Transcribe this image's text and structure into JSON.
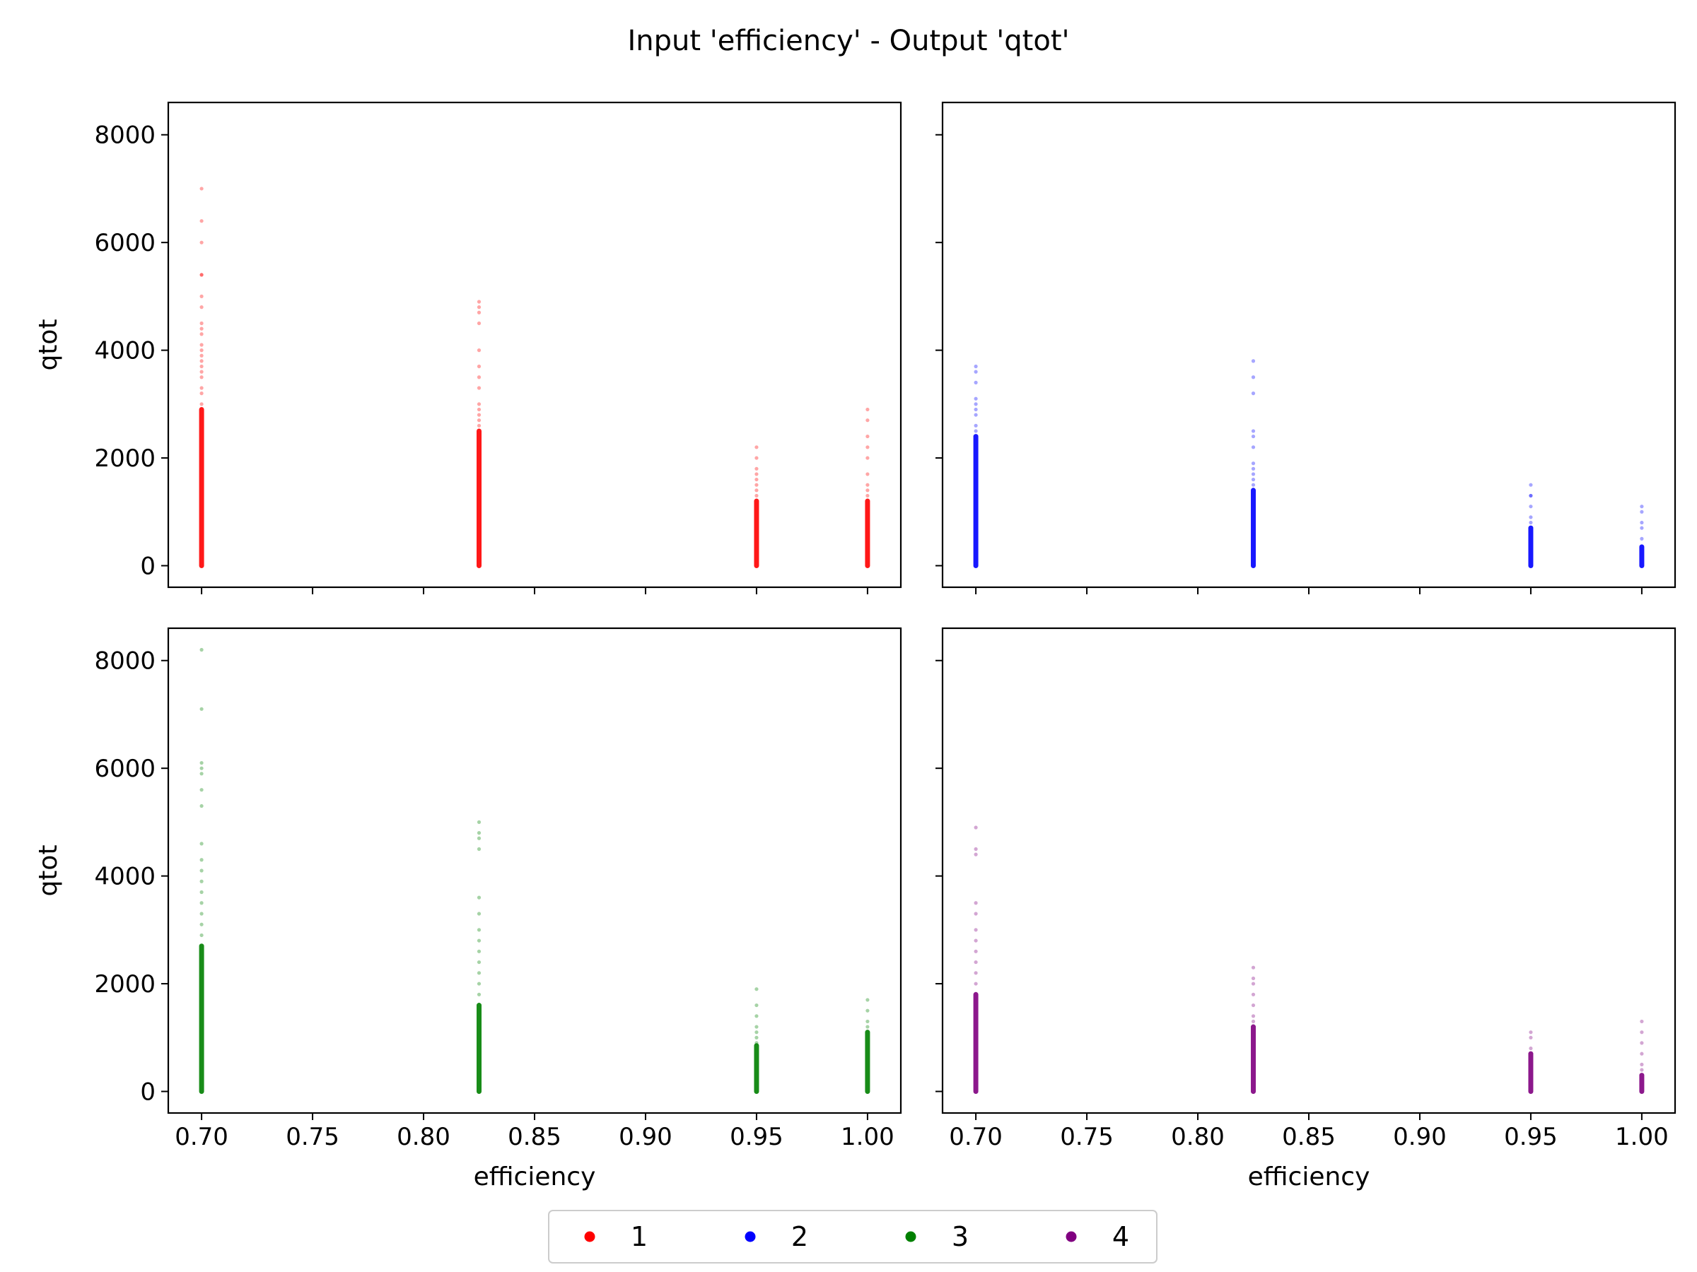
{
  "chart_data": {
    "type": "scatter",
    "title": "Input 'efficiency' - Output 'qtot'",
    "grid": false,
    "legend": {
      "placement": "bottom-center",
      "entries": [
        {
          "label": "1",
          "color": "#ff0000"
        },
        {
          "label": "2",
          "color": "#0000ff"
        },
        {
          "label": "3",
          "color": "#008000"
        },
        {
          "label": "4",
          "color": "#800080"
        }
      ]
    },
    "shared": {
      "xlim": [
        0.685,
        1.015
      ],
      "ylim": [
        -400,
        8600
      ],
      "xticks": [
        0.7,
        0.75,
        0.8,
        0.85,
        0.9,
        0.95,
        1.0
      ],
      "xtick_labels": [
        "0.70",
        "0.75",
        "0.80",
        "0.85",
        "0.90",
        "0.95",
        "1.00"
      ],
      "yticks": [
        0,
        2000,
        4000,
        6000,
        8000
      ],
      "ytick_labels": [
        "0",
        "2000",
        "4000",
        "6000",
        "8000"
      ]
    },
    "panels": [
      {
        "series": "1",
        "color": "#ff0000",
        "xlabel": "",
        "ylabel": "qtot",
        "show_xtick_labels": false,
        "show_ytick_labels": true,
        "groups": [
          {
            "x": 0.7,
            "dense_max": 2900,
            "outliers": [
              3000,
              3200,
              3300,
              3500,
              3600,
              3700,
              3800,
              3900,
              4000,
              4100,
              4300,
              4400,
              4500,
              4800,
              5000,
              5400,
              5400,
              6000,
              6400,
              7000
            ]
          },
          {
            "x": 0.825,
            "dense_max": 2500,
            "outliers": [
              2600,
              2700,
              2800,
              2900,
              3000,
              3300,
              3500,
              3700,
              4000,
              4500,
              4700,
              4800,
              4900
            ]
          },
          {
            "x": 0.95,
            "dense_max": 1200,
            "outliers": [
              1300,
              1400,
              1500,
              1600,
              1700,
              1800,
              2000,
              2200
            ]
          },
          {
            "x": 1.0,
            "dense_max": 1200,
            "outliers": [
              1300,
              1400,
              1500,
              1700,
              2000,
              2200,
              2400,
              2700,
              2900
            ]
          }
        ]
      },
      {
        "series": "2",
        "color": "#0000ff",
        "xlabel": "",
        "ylabel": "",
        "show_xtick_labels": false,
        "show_ytick_labels": false,
        "groups": [
          {
            "x": 0.7,
            "dense_max": 2400,
            "outliers": [
              2500,
              2600,
              2800,
              2900,
              3000,
              3100,
              3400,
              3600,
              3700
            ]
          },
          {
            "x": 0.825,
            "dense_max": 1400,
            "outliers": [
              1500,
              1600,
              1700,
              1800,
              1900,
              2200,
              2400,
              2500,
              3200,
              3500,
              3800
            ]
          },
          {
            "x": 0.95,
            "dense_max": 700,
            "outliers": [
              800,
              900,
              1100,
              1300,
              1300,
              1500
            ]
          },
          {
            "x": 1.0,
            "dense_max": 350,
            "outliers": [
              500,
              700,
              800,
              1000,
              1100
            ]
          }
        ]
      },
      {
        "series": "3",
        "color": "#008000",
        "xlabel": "efficiency",
        "ylabel": "qtot",
        "show_xtick_labels": true,
        "show_ytick_labels": true,
        "groups": [
          {
            "x": 0.7,
            "dense_max": 2700,
            "outliers": [
              2900,
              3100,
              3300,
              3500,
              3700,
              3900,
              4100,
              4300,
              4600,
              5300,
              5600,
              5900,
              6000,
              6100,
              7100,
              8200
            ]
          },
          {
            "x": 0.825,
            "dense_max": 1600,
            "outliers": [
              1800,
              2000,
              2200,
              2400,
              2600,
              2800,
              3000,
              3300,
              3600,
              4500,
              4700,
              4800,
              5000
            ]
          },
          {
            "x": 0.95,
            "dense_max": 850,
            "outliers": [
              900,
              1000,
              1100,
              1200,
              1400,
              1600,
              1900
            ]
          },
          {
            "x": 1.0,
            "dense_max": 1100,
            "outliers": [
              1200,
              1300,
              1500,
              1700
            ]
          }
        ]
      },
      {
        "series": "4",
        "color": "#800080",
        "xlabel": "efficiency",
        "ylabel": "",
        "show_xtick_labels": true,
        "show_ytick_labels": false,
        "groups": [
          {
            "x": 0.7,
            "dense_max": 1800,
            "outliers": [
              2000,
              2200,
              2400,
              2600,
              2800,
              3000,
              3300,
              3500,
              4400,
              4500,
              4900
            ]
          },
          {
            "x": 0.825,
            "dense_max": 1200,
            "outliers": [
              1300,
              1400,
              1600,
              1800,
              2000,
              2100,
              2300
            ]
          },
          {
            "x": 0.95,
            "dense_max": 700,
            "outliers": [
              800,
              1000,
              1100
            ]
          },
          {
            "x": 1.0,
            "dense_max": 300,
            "outliers": [
              400,
              500,
              700,
              900,
              1100,
              1300
            ]
          }
        ]
      }
    ]
  }
}
